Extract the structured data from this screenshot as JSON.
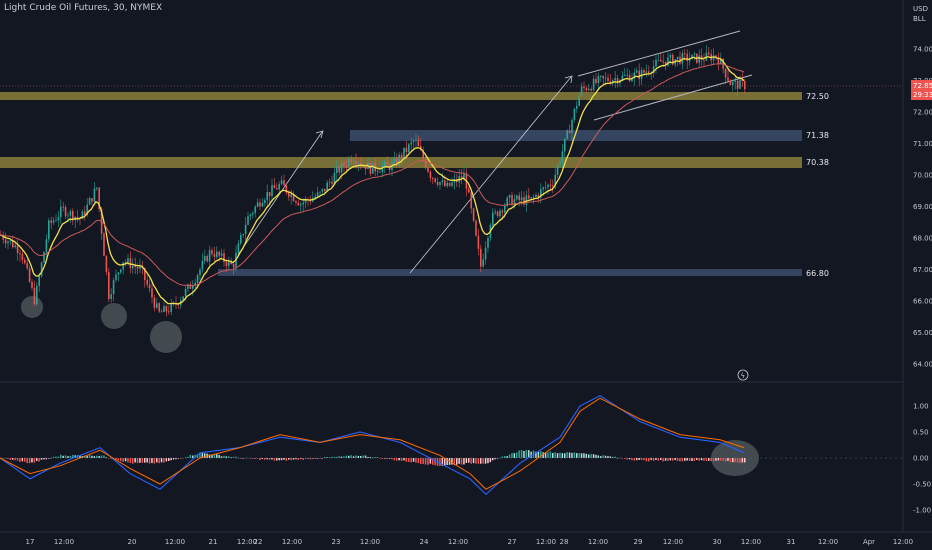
{
  "header": {
    "title": "Light Crude Oil Futures, 30, NYMEX",
    "currency": "USD",
    "unit": "BLL"
  },
  "colors": {
    "background": "#131722",
    "candle_up": "#26a69a",
    "candle_down": "#ef5350",
    "zone_gold": "#8a7f3a",
    "zone_blue": "#3a4a66",
    "ema_fast": "#f2e14a",
    "ema_slow": "#c85a5a",
    "macd_line": "#2962ff",
    "signal_line": "#ff6d00"
  },
  "price_axis": {
    "ticks": [
      "74.00",
      "73.00",
      "72.00",
      "71.00",
      "70.00",
      "69.00",
      "68.00",
      "67.00",
      "66.00",
      "65.00",
      "64.00"
    ],
    "last_price": "72.85",
    "countdown": "29:33"
  },
  "macd_axis": {
    "ticks": [
      "1.00",
      "0.50",
      "0.00",
      "-0.50",
      "-1.00"
    ]
  },
  "time_axis": {
    "ticks": [
      "17",
      "12:00",
      "20",
      "12:00",
      "21",
      "12:00",
      "22",
      "12:00",
      "23",
      "12:00",
      "24",
      "12:00",
      "27",
      "12:00",
      "28",
      "12:00",
      "29",
      "12:00",
      "30",
      "12:00",
      "31",
      "12:00",
      "Apr",
      "12:00"
    ]
  },
  "levels": [
    {
      "label": "72.50",
      "kind": "gold"
    },
    {
      "label": "71.38",
      "kind": "blue"
    },
    {
      "label": "70.38",
      "kind": "gold"
    },
    {
      "label": "66.80",
      "kind": "blue"
    }
  ],
  "chart_data": {
    "type": "candlestick",
    "title": "Light Crude Oil Futures, 30, NYMEX",
    "ylim": [
      63.6,
      75.2
    ],
    "close_approx": [
      [
        0,
        68.1
      ],
      [
        20,
        67.6
      ],
      [
        34,
        66.0
      ],
      [
        48,
        68.4
      ],
      [
        62,
        68.9
      ],
      [
        80,
        68.6
      ],
      [
        96,
        69.6
      ],
      [
        108,
        66.2
      ],
      [
        122,
        67.3
      ],
      [
        140,
        67.0
      ],
      [
        158,
        65.6
      ],
      [
        172,
        65.8
      ],
      [
        190,
        66.5
      ],
      [
        210,
        67.6
      ],
      [
        232,
        67.1
      ],
      [
        246,
        68.6
      ],
      [
        262,
        69.3
      ],
      [
        280,
        69.7
      ],
      [
        300,
        69.1
      ],
      [
        320,
        69.4
      ],
      [
        336,
        70.1
      ],
      [
        352,
        70.6
      ],
      [
        370,
        70.2
      ],
      [
        392,
        70.3
      ],
      [
        414,
        71.1
      ],
      [
        430,
        70.0
      ],
      [
        446,
        69.6
      ],
      [
        464,
        70.0
      ],
      [
        480,
        67.1
      ],
      [
        490,
        68.6
      ],
      [
        508,
        69.2
      ],
      [
        530,
        69.2
      ],
      [
        552,
        69.8
      ],
      [
        566,
        71.2
      ],
      [
        580,
        72.7
      ],
      [
        600,
        73.0
      ],
      [
        620,
        73.1
      ],
      [
        640,
        73.2
      ],
      [
        660,
        73.6
      ],
      [
        680,
        73.7
      ],
      [
        700,
        73.7
      ],
      [
        716,
        73.8
      ],
      [
        730,
        72.9
      ],
      [
        744,
        72.85
      ]
    ],
    "levels": [
      72.5,
      71.38,
      70.38,
      66.8
    ],
    "macd": {
      "ylim": [
        -1.25,
        1.25
      ],
      "macd_line_approx": [
        [
          0,
          0.0
        ],
        [
          30,
          -0.4
        ],
        [
          60,
          -0.1
        ],
        [
          100,
          0.2
        ],
        [
          130,
          -0.3
        ],
        [
          160,
          -0.6
        ],
        [
          200,
          0.1
        ],
        [
          240,
          0.2
        ],
        [
          280,
          0.4
        ],
        [
          320,
          0.3
        ],
        [
          360,
          0.5
        ],
        [
          400,
          0.3
        ],
        [
          440,
          -0.1
        ],
        [
          470,
          -0.4
        ],
        [
          486,
          -0.7
        ],
        [
          520,
          -0.1
        ],
        [
          560,
          0.4
        ],
        [
          580,
          1.0
        ],
        [
          600,
          1.2
        ],
        [
          640,
          0.7
        ],
        [
          680,
          0.4
        ],
        [
          720,
          0.3
        ],
        [
          744,
          0.1
        ]
      ],
      "signal_line_approx": [
        [
          0,
          0.0
        ],
        [
          30,
          -0.3
        ],
        [
          60,
          -0.15
        ],
        [
          100,
          0.15
        ],
        [
          130,
          -0.2
        ],
        [
          160,
          -0.5
        ],
        [
          200,
          0.0
        ],
        [
          240,
          0.2
        ],
        [
          280,
          0.45
        ],
        [
          320,
          0.3
        ],
        [
          360,
          0.45
        ],
        [
          400,
          0.35
        ],
        [
          440,
          0.05
        ],
        [
          470,
          -0.3
        ],
        [
          486,
          -0.6
        ],
        [
          520,
          -0.25
        ],
        [
          560,
          0.3
        ],
        [
          580,
          0.9
        ],
        [
          600,
          1.15
        ],
        [
          640,
          0.75
        ],
        [
          680,
          0.45
        ],
        [
          720,
          0.35
        ],
        [
          744,
          0.2
        ]
      ]
    }
  }
}
